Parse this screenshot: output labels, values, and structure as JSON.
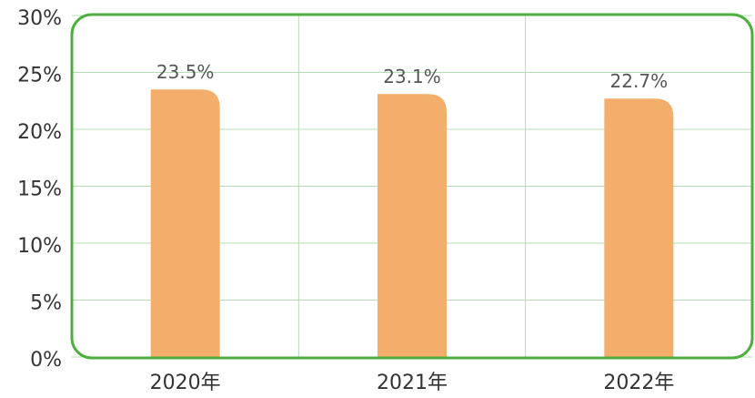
{
  "chart_data": {
    "type": "bar",
    "categories": [
      "2020年",
      "2021年",
      "2022年"
    ],
    "values": [
      23.5,
      23.1,
      22.7
    ],
    "value_labels": [
      "23.5%",
      "23.1%",
      "22.7%"
    ],
    "color": "#f4ae6b",
    "ylim": [
      0,
      30
    ],
    "yticks": [
      {
        "value": 0,
        "label": "0%"
      },
      {
        "value": 5,
        "label": "5%"
      },
      {
        "value": 10,
        "label": "10%"
      },
      {
        "value": 15,
        "label": "15%"
      },
      {
        "value": 20,
        "label": "20%"
      },
      {
        "value": 25,
        "label": "25%"
      },
      {
        "value": 30,
        "label": "30%"
      }
    ],
    "grid": true
  }
}
